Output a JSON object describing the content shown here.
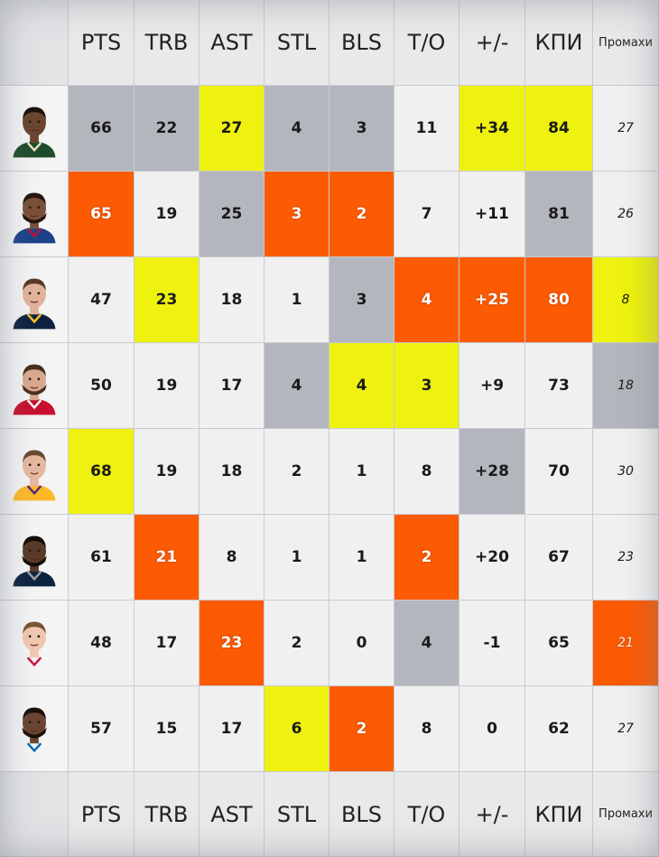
{
  "colors": {
    "default": "#f0f0f0",
    "grey": "#b3b6bc",
    "yellow": "#eef20e",
    "orange": "#fc5a03",
    "header": "#e9e9ea"
  },
  "headers": [
    "PTS",
    "TRB",
    "AST",
    "STL",
    "BLS",
    "T/O",
    "+/-",
    "КПИ",
    "Промахи"
  ],
  "footer_headers": [
    "PTS",
    "TRB",
    "AST",
    "STL",
    "BLS",
    "T/O",
    "+/-",
    "КПИ",
    "Промахи"
  ],
  "rows": [
    {
      "avatar": {
        "skin": "#6b4530",
        "hair": "#1c120c",
        "beard": false,
        "jersey": "#1e4d2b",
        "jersey_accent": "#efe3c6"
      },
      "cells": [
        {
          "v": "66",
          "c": "grey"
        },
        {
          "v": "22",
          "c": "grey"
        },
        {
          "v": "27",
          "c": "yellow"
        },
        {
          "v": "4",
          "c": "grey"
        },
        {
          "v": "3",
          "c": "grey"
        },
        {
          "v": "11",
          "c": "default"
        },
        {
          "v": "+34",
          "c": "yellow"
        },
        {
          "v": "84",
          "c": "yellow"
        },
        {
          "v": "27",
          "c": "default"
        }
      ]
    },
    {
      "avatar": {
        "skin": "#7a5138",
        "hair": "#24160e",
        "beard": true,
        "jersey": "#1d428a",
        "jersey_accent": "#c8102e"
      },
      "cells": [
        {
          "v": "65",
          "c": "orange"
        },
        {
          "v": "19",
          "c": "default"
        },
        {
          "v": "25",
          "c": "grey"
        },
        {
          "v": "3",
          "c": "orange"
        },
        {
          "v": "2",
          "c": "orange"
        },
        {
          "v": "7",
          "c": "default"
        },
        {
          "v": "+11",
          "c": "default"
        },
        {
          "v": "81",
          "c": "grey"
        },
        {
          "v": "26",
          "c": "default"
        }
      ]
    },
    {
      "avatar": {
        "skin": "#e2b39a",
        "hair": "#5a3a22",
        "beard": false,
        "jersey": "#0e2240",
        "jersey_accent": "#fec524"
      },
      "cells": [
        {
          "v": "47",
          "c": "default"
        },
        {
          "v": "23",
          "c": "yellow"
        },
        {
          "v": "18",
          "c": "default"
        },
        {
          "v": "1",
          "c": "default"
        },
        {
          "v": "3",
          "c": "grey"
        },
        {
          "v": "4",
          "c": "orange"
        },
        {
          "v": "+25",
          "c": "orange"
        },
        {
          "v": "80",
          "c": "orange"
        },
        {
          "v": "8",
          "c": "yellow"
        }
      ]
    },
    {
      "avatar": {
        "skin": "#d9a98c",
        "hair": "#4a2e1e",
        "beard": true,
        "jersey": "#c8102e",
        "jersey_accent": "#ffffff"
      },
      "cells": [
        {
          "v": "50",
          "c": "default"
        },
        {
          "v": "19",
          "c": "default"
        },
        {
          "v": "17",
          "c": "default"
        },
        {
          "v": "4",
          "c": "grey"
        },
        {
          "v": "4",
          "c": "yellow"
        },
        {
          "v": "3",
          "c": "yellow"
        },
        {
          "v": "+9",
          "c": "default"
        },
        {
          "v": "73",
          "c": "default"
        },
        {
          "v": "18",
          "c": "grey"
        }
      ]
    },
    {
      "avatar": {
        "skin": "#e5b8a0",
        "hair": "#6a4a30",
        "beard": false,
        "jersey": "#fdb927",
        "jersey_accent": "#552583"
      },
      "cells": [
        {
          "v": "68",
          "c": "yellow"
        },
        {
          "v": "19",
          "c": "default"
        },
        {
          "v": "18",
          "c": "default"
        },
        {
          "v": "2",
          "c": "default"
        },
        {
          "v": "1",
          "c": "default"
        },
        {
          "v": "8",
          "c": "default"
        },
        {
          "v": "+28",
          "c": "grey"
        },
        {
          "v": "70",
          "c": "default"
        },
        {
          "v": "30",
          "c": "default"
        }
      ]
    },
    {
      "avatar": {
        "skin": "#5a3a28",
        "hair": "#140c08",
        "beard": true,
        "jersey": "#0c2340",
        "jersey_accent": "#9ea2a2"
      },
      "cells": [
        {
          "v": "61",
          "c": "default"
        },
        {
          "v": "21",
          "c": "orange"
        },
        {
          "v": "8",
          "c": "default"
        },
        {
          "v": "1",
          "c": "default"
        },
        {
          "v": "1",
          "c": "default"
        },
        {
          "v": "2",
          "c": "orange"
        },
        {
          "v": "+20",
          "c": "default"
        },
        {
          "v": "67",
          "c": "default"
        },
        {
          "v": "23",
          "c": "default"
        }
      ]
    },
    {
      "avatar": {
        "skin": "#f0c8b0",
        "hair": "#7a5432",
        "beard": false,
        "jersey": "#f4f4f4",
        "jersey_accent": "#ce1141"
      },
      "cells": [
        {
          "v": "48",
          "c": "default"
        },
        {
          "v": "17",
          "c": "default"
        },
        {
          "v": "23",
          "c": "orange"
        },
        {
          "v": "2",
          "c": "default"
        },
        {
          "v": "0",
          "c": "default"
        },
        {
          "v": "4",
          "c": "grey"
        },
        {
          "v": "-1",
          "c": "default"
        },
        {
          "v": "65",
          "c": "default"
        },
        {
          "v": "21",
          "c": "orange"
        }
      ]
    },
    {
      "avatar": {
        "skin": "#6a4430",
        "hair": "#1a100a",
        "beard": true,
        "jersey": "#f4f4f4",
        "jersey_accent": "#006bb6"
      },
      "cells": [
        {
          "v": "57",
          "c": "default"
        },
        {
          "v": "15",
          "c": "default"
        },
        {
          "v": "17",
          "c": "default"
        },
        {
          "v": "6",
          "c": "yellow"
        },
        {
          "v": "2",
          "c": "orange"
        },
        {
          "v": "8",
          "c": "default"
        },
        {
          "v": "0",
          "c": "default"
        },
        {
          "v": "62",
          "c": "default"
        },
        {
          "v": "27",
          "c": "default"
        }
      ]
    }
  ]
}
